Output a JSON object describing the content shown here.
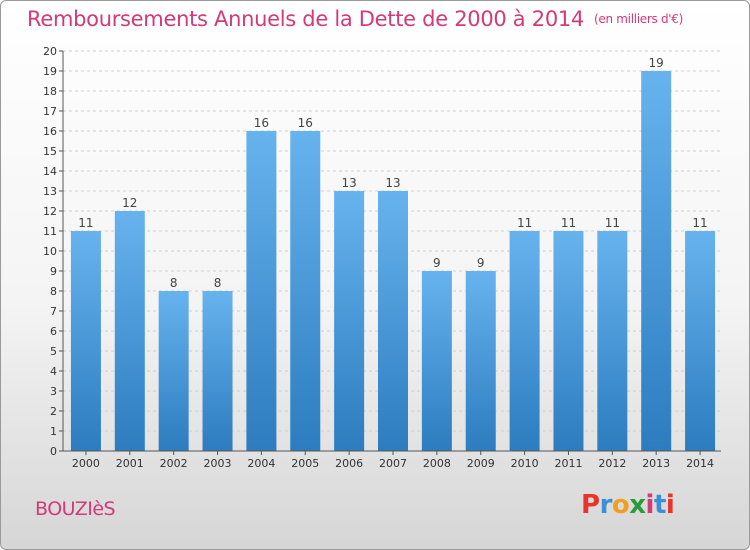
{
  "title": "Remboursements Annuels de la Dette de 2000 à 2014",
  "unit": "(en milliers d'€)",
  "town": "BOUZIèS",
  "logo": {
    "letters": [
      "P",
      "r",
      "o",
      "x",
      "i",
      "t",
      "i"
    ],
    "colors": [
      "#e8342a",
      "#3a8fd6",
      "#f0a020",
      "#2a9a3a",
      "#d23a78",
      "#3a8fd6",
      "#e8342a"
    ]
  },
  "chart_data": {
    "type": "bar",
    "categories": [
      "2000",
      "2001",
      "2002",
      "2003",
      "2004",
      "2005",
      "2006",
      "2007",
      "2008",
      "2009",
      "2010",
      "2011",
      "2012",
      "2013",
      "2014"
    ],
    "values": [
      11,
      12,
      8,
      8,
      16,
      16,
      13,
      13,
      9,
      9,
      11,
      11,
      11,
      19,
      11
    ],
    "ylim": [
      0,
      20
    ],
    "yticks": [
      0,
      1,
      2,
      3,
      4,
      5,
      6,
      7,
      8,
      9,
      10,
      11,
      12,
      13,
      14,
      15,
      16,
      17,
      18,
      19,
      20
    ],
    "grid": true,
    "colors": {
      "bar_top": "#67b3ee",
      "bar_bottom": "#2c7cbf",
      "label": "#444444",
      "axis": "#555555"
    }
  }
}
